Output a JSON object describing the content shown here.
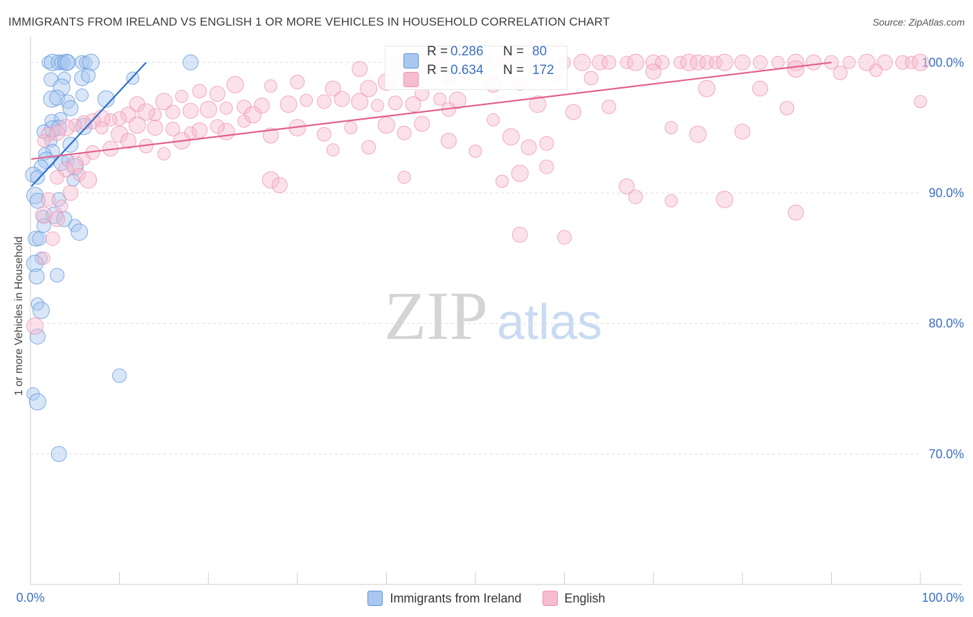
{
  "header": {
    "title": "IMMIGRANTS FROM IRELAND VS ENGLISH 1 OR MORE VEHICLES IN HOUSEHOLD CORRELATION CHART",
    "source": "Source: ZipAtlas.com"
  },
  "watermark": {
    "zip": "ZIP",
    "atlas": "atlas"
  },
  "stats": {
    "ireland": {
      "r_label": "R =",
      "r_value": "0.286",
      "n_label": "N =",
      "n_value": "80"
    },
    "english": {
      "r_label": "R =",
      "r_value": "0.634",
      "n_label": "N =",
      "n_value": "172"
    }
  },
  "legend": {
    "ireland": "Immigrants from Ireland",
    "english": "English"
  },
  "colors": {
    "ireland_fill": "#a9c8f0",
    "ireland_stroke": "#5b93d8",
    "ireland_line": "#2b6fd1",
    "english_fill": "#f6bcd0",
    "english_stroke": "#ee8fb0",
    "english_line": "#e2608b",
    "tick_label": "#3a6fc2",
    "grid": "#dddddd"
  },
  "chart_data": {
    "type": "scatter",
    "title": "IMMIGRANTS FROM IRELAND VS ENGLISH 1 OR MORE VEHICLES IN HOUSEHOLD CORRELATION CHART",
    "xlabel": "",
    "ylabel": "1 or more Vehicles in Household",
    "xlim": [
      0,
      100
    ],
    "ylim": [
      60,
      101.5
    ],
    "x_tick_labels": [
      "0.0%",
      "100.0%"
    ],
    "y_ticks": [
      100,
      90,
      80,
      70
    ],
    "y_tick_labels": [
      "100.0%",
      "90.0%",
      "80.0%",
      "70.0%"
    ],
    "grid": true,
    "series": [
      {
        "name": "Immigrants from Ireland",
        "trend": {
          "x": [
            0.1,
            13.0
          ],
          "y": [
            90.5,
            100.0
          ]
        },
        "points": [
          [
            2.0,
            100
          ],
          [
            2.5,
            100
          ],
          [
            3.2,
            100
          ],
          [
            3.5,
            100
          ],
          [
            3.8,
            100
          ],
          [
            4.0,
            100
          ],
          [
            4.2,
            100
          ],
          [
            5.8,
            100
          ],
          [
            6.2,
            100
          ],
          [
            6.8,
            100
          ],
          [
            18.0,
            100
          ],
          [
            2.3,
            98.7
          ],
          [
            3.8,
            98.8
          ],
          [
            3.5,
            98.1
          ],
          [
            5.8,
            98.8
          ],
          [
            6.5,
            99.0
          ],
          [
            11.5,
            98.8
          ],
          [
            2.4,
            97.2
          ],
          [
            3.0,
            97.3
          ],
          [
            4.2,
            97.0
          ],
          [
            5.8,
            97.5
          ],
          [
            8.5,
            97.2
          ],
          [
            4.5,
            96.5
          ],
          [
            2.4,
            95.5
          ],
          [
            3.4,
            95.7
          ],
          [
            2.5,
            94.9
          ],
          [
            3.2,
            95.0
          ],
          [
            1.5,
            94.7
          ],
          [
            2.3,
            94.0
          ],
          [
            6.0,
            95.1
          ],
          [
            4.5,
            93.7
          ],
          [
            2.5,
            93.2
          ],
          [
            1.6,
            93.0
          ],
          [
            1.8,
            92.5
          ],
          [
            3.5,
            92.3
          ],
          [
            1.2,
            92.0
          ],
          [
            4.2,
            92.5
          ],
          [
            5.0,
            92.0
          ],
          [
            0.3,
            91.4
          ],
          [
            0.8,
            91.2
          ],
          [
            4.8,
            91.0
          ],
          [
            0.5,
            89.8
          ],
          [
            0.8,
            89.4
          ],
          [
            3.2,
            89.5
          ],
          [
            1.4,
            88.2
          ],
          [
            2.7,
            88.3
          ],
          [
            3.8,
            88.0
          ],
          [
            1.5,
            87.5
          ],
          [
            5.0,
            87.5
          ],
          [
            5.5,
            87.0
          ],
          [
            0.6,
            86.5
          ],
          [
            1.0,
            86.5
          ],
          [
            1.2,
            85.0
          ],
          [
            0.5,
            84.6
          ],
          [
            0.7,
            83.6
          ],
          [
            3.0,
            83.7
          ],
          [
            0.8,
            81.5
          ],
          [
            1.2,
            81.0
          ],
          [
            0.8,
            79.0
          ],
          [
            10.0,
            76.0
          ],
          [
            0.3,
            74.6
          ],
          [
            0.8,
            74.0
          ],
          [
            3.2,
            70.0
          ]
        ]
      },
      {
        "name": "English",
        "trend": {
          "x": [
            0.1,
            90.0
          ],
          "y": [
            92.6,
            100.0
          ]
        },
        "points": [
          [
            41,
            100
          ],
          [
            44,
            100
          ],
          [
            46,
            100
          ],
          [
            51,
            100
          ],
          [
            53,
            100
          ],
          [
            54,
            100
          ],
          [
            56,
            100
          ],
          [
            58,
            100
          ],
          [
            60,
            100
          ],
          [
            62,
            100
          ],
          [
            64,
            100
          ],
          [
            65,
            100
          ],
          [
            67,
            100
          ],
          [
            68,
            100
          ],
          [
            70,
            100
          ],
          [
            71,
            100
          ],
          [
            73,
            100
          ],
          [
            74,
            100
          ],
          [
            75,
            100
          ],
          [
            76,
            100
          ],
          [
            77,
            100
          ],
          [
            78,
            100
          ],
          [
            80,
            100
          ],
          [
            82,
            100
          ],
          [
            84,
            100
          ],
          [
            86,
            100
          ],
          [
            88,
            100
          ],
          [
            90,
            100
          ],
          [
            92,
            100
          ],
          [
            94,
            100
          ],
          [
            96,
            100
          ],
          [
            98,
            100
          ],
          [
            99,
            100
          ],
          [
            100,
            100
          ],
          [
            37,
            99.5
          ],
          [
            42,
            99.2
          ],
          [
            49,
            99.2
          ],
          [
            40,
            98.5
          ],
          [
            52,
            98.3
          ],
          [
            55,
            98.4
          ],
          [
            47,
            98.7
          ],
          [
            38,
            98.0
          ],
          [
            34,
            98.0
          ],
          [
            30,
            98.5
          ],
          [
            27,
            98.2
          ],
          [
            23,
            98.3
          ],
          [
            21,
            97.6
          ],
          [
            19,
            97.8
          ],
          [
            17,
            97.4
          ],
          [
            15,
            97.0
          ],
          [
            12,
            96.8
          ],
          [
            44,
            97.6
          ],
          [
            46,
            97.2
          ],
          [
            48,
            97.1
          ],
          [
            43,
            96.8
          ],
          [
            41,
            96.9
          ],
          [
            39,
            96.7
          ],
          [
            37,
            97.0
          ],
          [
            35,
            97.2
          ],
          [
            33,
            97.0
          ],
          [
            31,
            97.1
          ],
          [
            29,
            96.8
          ],
          [
            26,
            96.7
          ],
          [
            24,
            96.6
          ],
          [
            22,
            96.5
          ],
          [
            20,
            96.4
          ],
          [
            18,
            96.3
          ],
          [
            16,
            96.2
          ],
          [
            14,
            96.0
          ],
          [
            13,
            96.2
          ],
          [
            11,
            96.0
          ],
          [
            10,
            95.7
          ],
          [
            9,
            95.6
          ],
          [
            8,
            95.7
          ],
          [
            7,
            95.5
          ],
          [
            6,
            95.4
          ],
          [
            5,
            95.2
          ],
          [
            4,
            95.0
          ],
          [
            3,
            94.6
          ],
          [
            2,
            94.5
          ],
          [
            1.5,
            94.0
          ],
          [
            12,
            95.2
          ],
          [
            14,
            95.0
          ],
          [
            16,
            94.9
          ],
          [
            18,
            94.6
          ],
          [
            22,
            94.7
          ],
          [
            27,
            94.4
          ],
          [
            33,
            94.5
          ],
          [
            36,
            95.0
          ],
          [
            40,
            95.2
          ],
          [
            44,
            95.3
          ],
          [
            47,
            96.4
          ],
          [
            52,
            95.6
          ],
          [
            57,
            96.8
          ],
          [
            61,
            96.2
          ],
          [
            65,
            96.6
          ],
          [
            72,
            95.0
          ],
          [
            75,
            94.5
          ],
          [
            80,
            94.7
          ],
          [
            85,
            96.5
          ],
          [
            8,
            95.0
          ],
          [
            10,
            94.5
          ],
          [
            11,
            94.0
          ],
          [
            13,
            93.6
          ],
          [
            15,
            93.0
          ],
          [
            17,
            94.0
          ],
          [
            19,
            94.8
          ],
          [
            21,
            95.1
          ],
          [
            24,
            95.5
          ],
          [
            25,
            96.0
          ],
          [
            9,
            93.4
          ],
          [
            7,
            93.1
          ],
          [
            6,
            92.6
          ],
          [
            5,
            92.2
          ],
          [
            4,
            91.8
          ],
          [
            3,
            91.2
          ],
          [
            5.5,
            91.4
          ],
          [
            6.5,
            91.0
          ],
          [
            4.5,
            90.0
          ],
          [
            42,
            94.6
          ],
          [
            34,
            93.3
          ],
          [
            30,
            95.0
          ],
          [
            47,
            94.0
          ],
          [
            38,
            93.5
          ],
          [
            50,
            93.2
          ],
          [
            54,
            94.3
          ],
          [
            56,
            93.5
          ],
          [
            58,
            93.8
          ],
          [
            42,
            91.2
          ],
          [
            55,
            91.5
          ],
          [
            67,
            90.5
          ],
          [
            58,
            92.0
          ],
          [
            53,
            90.9
          ],
          [
            27,
            91.0
          ],
          [
            28,
            90.6
          ],
          [
            68,
            89.7
          ],
          [
            72,
            89.4
          ],
          [
            78,
            89.5
          ],
          [
            86,
            88.5
          ],
          [
            2.0,
            89.5
          ],
          [
            3.5,
            89.0
          ],
          [
            1.5,
            88.3
          ],
          [
            3.0,
            88.0
          ],
          [
            2.5,
            86.5
          ],
          [
            1.5,
            85.0
          ],
          [
            0.5,
            79.8
          ],
          [
            55,
            86.8
          ],
          [
            60,
            86.6
          ],
          [
            100,
            97.0
          ],
          [
            76,
            98.0
          ],
          [
            82,
            98.0
          ],
          [
            91,
            99.2
          ],
          [
            95,
            99.4
          ],
          [
            86,
            99.5
          ],
          [
            70,
            99.3
          ],
          [
            63,
            98.8
          ],
          [
            59,
            99.0
          ]
        ]
      }
    ]
  }
}
